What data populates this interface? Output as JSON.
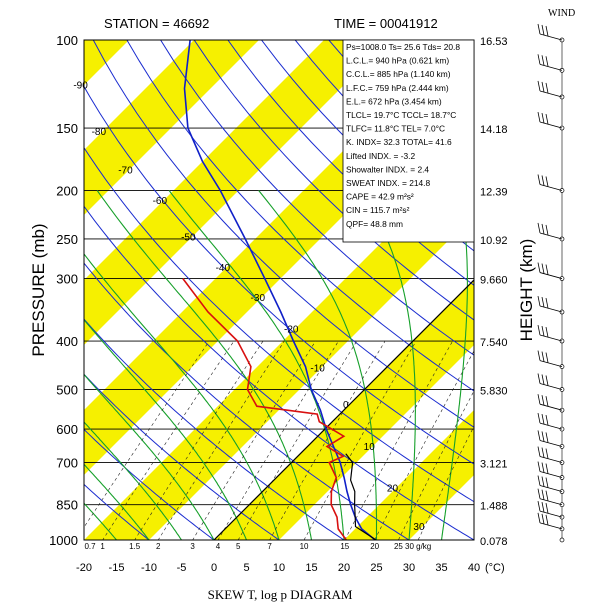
{
  "header": {
    "station_label": "STATION = 46692",
    "time_label": "TIME = 00041912",
    "wind_label": "WIND"
  },
  "stats_box": [
    "Ps=1008.0  Ts= 25.6  Tds= 20.8",
    "L.C.L.= 940 hPa (0.621 km)",
    "C.C.L.= 885 hPa (1.140 km)",
    "L.F.C.= 759 hPa (2.444 km)",
    "E.L.= 672 hPa (3.454 km)",
    "TLCL= 19.7°C TCCL= 18.7°C",
    "TLFC= 11.8°C  TEL= 7.0°C",
    "K. INDX= 32.3  TOTAL= 41.6",
    "Lifted INDX. = -3.2",
    "Showalter INDX. =     2.4",
    "SWEAT INDX. = 214.8",
    "CAPE =   42.9 m²s²",
    "CIN  =  115.7 m²s²",
    "QPF= 48.8 mm"
  ],
  "chart_data": {
    "type": "line",
    "title": "SKEW T, log p DIAGRAM",
    "xlabel": "SKEW T, log p DIAGRAM",
    "ylabel": "PRESSURE (mb)",
    "y2label": "HEIGHT (km)",
    "x_unit": "(°C)",
    "xlim": [
      -20,
      40
    ],
    "ylim_hpa": [
      1000,
      100
    ],
    "y_log_scale": true,
    "x_ticks": [
      -20,
      -15,
      -10,
      -5,
      0,
      5,
      10,
      15,
      20,
      25,
      30,
      35,
      40
    ],
    "pressure_ticks": [
      100,
      150,
      200,
      250,
      300,
      400,
      500,
      600,
      700,
      850,
      1000
    ],
    "height_ticks": [
      {
        "p": 100,
        "label": "16.53"
      },
      {
        "p": 150,
        "label": "14.18"
      },
      {
        "p": 200,
        "label": "12.39"
      },
      {
        "p": 250,
        "label": "10.92"
      },
      {
        "p": 300,
        "label": "9.660"
      },
      {
        "p": 400,
        "label": "7.540"
      },
      {
        "p": 500,
        "label": "5.830"
      },
      {
        "p": 700,
        "label": "3.121"
      },
      {
        "p": 850,
        "label": "1.488"
      },
      {
        "p": 1000,
        "label": "0.078"
      }
    ],
    "isotherm_labels": [
      {
        "t": -90,
        "p": 125,
        "label": "-90"
      },
      {
        "t": -80,
        "p": 155,
        "label": "-80"
      },
      {
        "t": -70,
        "p": 185,
        "label": "-70"
      },
      {
        "t": -60,
        "p": 213,
        "label": "-60"
      },
      {
        "t": -50,
        "p": 252,
        "label": "-50"
      },
      {
        "t": -40,
        "p": 290,
        "label": "-40"
      },
      {
        "t": -30,
        "p": 333,
        "label": "-30"
      },
      {
        "t": -20,
        "p": 385,
        "label": "-20"
      },
      {
        "t": -10,
        "p": 460,
        "label": "-10"
      },
      {
        "t": 0,
        "p": 545,
        "label": "0"
      },
      {
        "t": 10,
        "p": 660,
        "label": "10"
      },
      {
        "t": 20,
        "p": 800,
        "label": "20"
      },
      {
        "t": 30,
        "p": 955,
        "label": "30"
      }
    ],
    "mixing_ratio_labels": [
      "0.7",
      "1",
      "1.5",
      "2",
      "3",
      "4",
      "5",
      "7",
      "10",
      "15",
      "20",
      "25",
      "30 g/kg"
    ],
    "mixing_ratio_values": [
      0.7,
      1,
      1.5,
      2,
      3,
      4,
      5,
      7,
      10,
      15,
      20,
      25,
      30
    ],
    "series": [
      {
        "name": "",
        "color": "#1020c8",
        "points": [
          {
            "p": 1008,
            "t": 25.6
          },
          {
            "p": 1000,
            "t": 24.8
          },
          {
            "p": 950,
            "t": 21.0
          },
          {
            "p": 900,
            "t": 18.2
          },
          {
            "p": 850,
            "t": 15.6
          },
          {
            "p": 800,
            "t": 13.0
          },
          {
            "p": 750,
            "t": 10.4
          },
          {
            "p": 700,
            "t": 7.5
          },
          {
            "p": 650,
            "t": 4.0
          },
          {
            "p": 600,
            "t": 0.2
          },
          {
            "p": 550,
            "t": -3.6
          },
          {
            "p": 500,
            "t": -8.2
          },
          {
            "p": 450,
            "t": -12.6
          },
          {
            "p": 400,
            "t": -18.4
          },
          {
            "p": 350,
            "t": -24.8
          },
          {
            "p": 300,
            "t": -32.4
          },
          {
            "p": 250,
            "t": -41.5
          },
          {
            "p": 200,
            "t": -52.8
          },
          {
            "p": 175,
            "t": -60.0
          },
          {
            "p": 150,
            "t": -67.4
          },
          {
            "p": 125,
            "t": -74.0
          },
          {
            "p": 100,
            "t": -80.6
          }
        ]
      },
      {
        "name": "",
        "color": "#d81010",
        "points": [
          {
            "p": 1008,
            "t": 20.8
          },
          {
            "p": 950,
            "t": 17.4
          },
          {
            "p": 900,
            "t": 15.4
          },
          {
            "p": 850,
            "t": 12.6
          },
          {
            "p": 800,
            "t": 10.6
          },
          {
            "p": 750,
            "t": 9.2
          },
          {
            "p": 700,
            "t": 5.8
          },
          {
            "p": 680,
            "t": 7.0
          },
          {
            "p": 650,
            "t": 3.0
          },
          {
            "p": 620,
            "t": 4.0
          },
          {
            "p": 580,
            "t": -2.0
          },
          {
            "p": 560,
            "t": -3.5
          },
          {
            "p": 540,
            "t": -14.0
          },
          {
            "p": 500,
            "t": -18.0
          },
          {
            "p": 450,
            "t": -21.0
          },
          {
            "p": 400,
            "t": -27.0
          },
          {
            "p": 350,
            "t": -36.0
          },
          {
            "p": 300,
            "t": -45.0
          }
        ]
      },
      {
        "name": "",
        "color": "#000000",
        "points": [
          {
            "p": 1008,
            "t": 25.6
          },
          {
            "p": 940,
            "t": 19.7
          },
          {
            "p": 900,
            "t": 18.2
          },
          {
            "p": 850,
            "t": 16.2
          },
          {
            "p": 800,
            "t": 14.2
          },
          {
            "p": 759,
            "t": 11.8
          },
          {
            "p": 700,
            "t": 9.4
          },
          {
            "p": 672,
            "t": 7.0
          }
        ]
      }
    ],
    "wind_barbs_pressures": [
      100,
      115,
      130,
      150,
      200,
      250,
      300,
      350,
      400,
      450,
      500,
      550,
      600,
      650,
      700,
      750,
      800,
      850,
      900,
      950,
      1000
    ]
  }
}
